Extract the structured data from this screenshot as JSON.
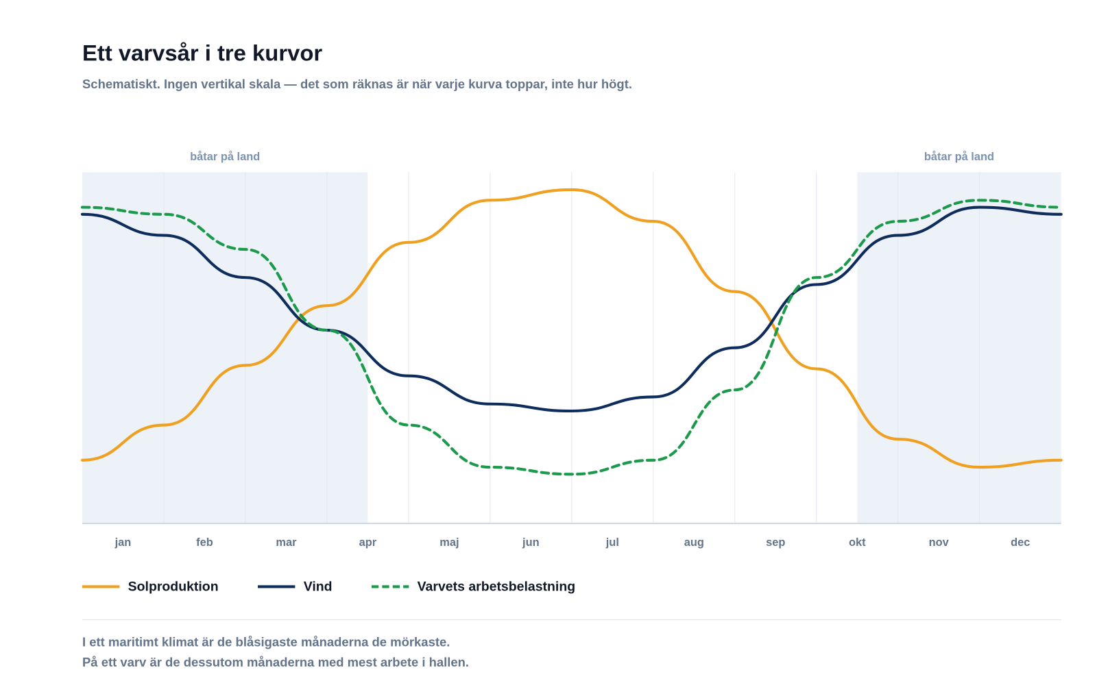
{
  "chart_data": {
    "type": "line",
    "title": "Ett varvsår i tre kurvor",
    "subtitle": "Schematiskt. Ingen vertikal skala — det som räknas är när varje kurva toppar, inte hur högt.",
    "categories": [
      "jan",
      "feb",
      "mar",
      "apr",
      "maj",
      "jun",
      "jul",
      "aug",
      "sep",
      "okt",
      "nov",
      "dec"
    ],
    "x": [
      0,
      1,
      2,
      3,
      4,
      5,
      6,
      7,
      8,
      9,
      10,
      11,
      12
    ],
    "xlim": [
      0,
      12
    ],
    "xticks": [
      1,
      2,
      3,
      4,
      5,
      6,
      7,
      8,
      9,
      10,
      11
    ],
    "ylim": [
      0,
      100
    ],
    "grid": true,
    "shaded": [
      {
        "from": 0,
        "to": 3.5,
        "label": "båtar på land"
      },
      {
        "from": 9.5,
        "to": 12,
        "label": "båtar på land"
      }
    ],
    "series": [
      {
        "name": "Solproduktion",
        "color": "#f0a020",
        "dash": false,
        "values": [
          18,
          28,
          45,
          62,
          80,
          92,
          95,
          86,
          66,
          44,
          24,
          16,
          18
        ]
      },
      {
        "name": "Vind",
        "color": "#0f2d5c",
        "dash": false,
        "values": [
          88,
          82,
          70,
          55,
          42,
          34,
          32,
          36,
          50,
          68,
          82,
          90,
          88
        ]
      },
      {
        "name": "Varvets arbetsbelastning",
        "color": "#1a9a4a",
        "dash": true,
        "values": [
          90,
          88,
          78,
          55,
          28,
          16,
          14,
          18,
          38,
          70,
          86,
          92,
          90
        ]
      }
    ],
    "legend": "bottom-left",
    "notes": [
      "I ett maritimt klimat är de blåsigaste månaderna de mörkaste.",
      "På ett varv är de dessutom månaderna med mest arbete i hallen."
    ]
  }
}
